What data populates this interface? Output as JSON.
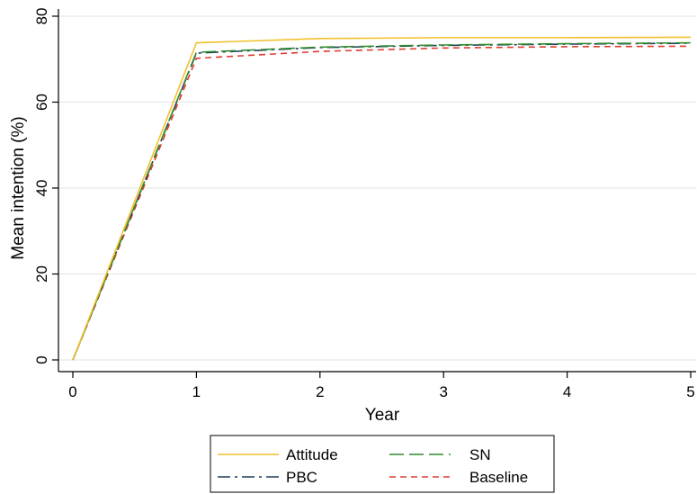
{
  "chart_data": {
    "type": "line",
    "title": "",
    "xlabel": "Year",
    "ylabel": "Mean intention (%)",
    "xlim": [
      0,
      5
    ],
    "ylim": [
      0,
      80
    ],
    "xticks": [
      "0",
      "1",
      "2",
      "3",
      "4",
      "5"
    ],
    "yticks": [
      "0",
      "20",
      "40",
      "60",
      "80"
    ],
    "grid": true,
    "legend_position": "bottom",
    "x": [
      0,
      1,
      2,
      3,
      4,
      5
    ],
    "series": [
      {
        "name": "Attitude",
        "values": [
          0,
          73.8,
          74.8,
          75.0,
          75.0,
          75.1
        ],
        "color": "#f2c12e",
        "dash": "solid"
      },
      {
        "name": "SN",
        "values": [
          0,
          71.6,
          72.8,
          73.3,
          73.6,
          73.8
        ],
        "color": "#2e8b2e",
        "dash": "long-dash"
      },
      {
        "name": "PBC",
        "values": [
          0,
          71.4,
          72.7,
          73.2,
          73.5,
          73.7
        ],
        "color": "#1f3b57",
        "dash": "dash-dot"
      },
      {
        "name": "Baseline",
        "values": [
          0,
          70.2,
          71.8,
          72.6,
          72.9,
          73.0
        ],
        "color": "#e03a2f",
        "dash": "short-dash"
      }
    ]
  }
}
